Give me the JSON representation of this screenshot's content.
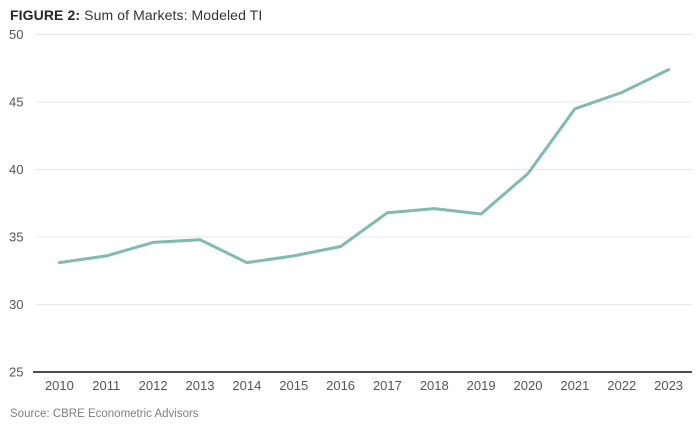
{
  "figure": {
    "label": "FIGURE 2:",
    "title": "Sum of Markets: Modeled TI"
  },
  "source": "Source: CBRE Econometric Advisors",
  "colors": {
    "line": "#80BBAD",
    "grid": "#e7e7e7",
    "axis_line": "#4d4d4d",
    "tick_text": "#555555",
    "title_text": "#262626",
    "source_text": "#7f8080"
  },
  "chart_data": {
    "type": "line",
    "title": "FIGURE 2: Sum of Markets: Modeled TI",
    "categories": [
      "2010",
      "2011",
      "2012",
      "2013",
      "2014",
      "2015",
      "2016",
      "2017",
      "2018",
      "2019",
      "2020",
      "2021",
      "2022",
      "2023"
    ],
    "values": [
      33.1,
      33.6,
      34.6,
      34.8,
      33.1,
      33.6,
      34.3,
      36.8,
      37.1,
      36.7,
      39.7,
      44.5,
      45.7,
      47.4
    ],
    "xlabel": "",
    "ylabel": "",
    "ylim": [
      25,
      50
    ],
    "yticks": [
      25,
      30,
      35,
      40,
      45,
      50
    ],
    "grid": "horizontal",
    "legend": "none"
  }
}
